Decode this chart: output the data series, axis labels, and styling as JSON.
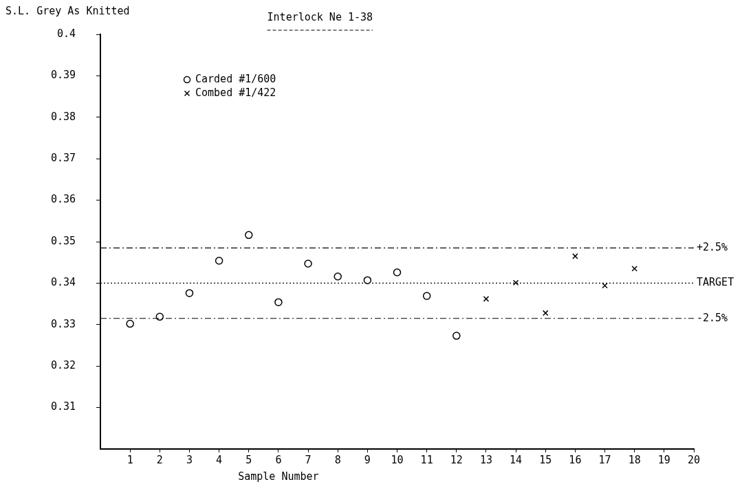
{
  "chart_data": {
    "type": "scatter",
    "title": "Interlock Ne 1-38",
    "xlabel": "Sample Number",
    "ylabel": "S.L. Grey As Knitted",
    "xlim": [
      0,
      20
    ],
    "xticks": [
      1,
      2,
      3,
      4,
      5,
      6,
      7,
      8,
      9,
      10,
      11,
      12,
      13,
      14,
      15,
      16,
      17,
      18,
      19,
      20
    ],
    "ylim": [
      0.3,
      0.4
    ],
    "yticks": [
      0.31,
      0.32,
      0.33,
      0.34,
      0.35,
      0.36,
      0.37,
      0.38,
      0.39,
      0.4
    ],
    "grid": false,
    "legend": "top left",
    "series": [
      {
        "name": "Carded #1/600",
        "color": "#000000",
        "marker": "circle",
        "x": [
          1,
          2,
          3,
          4,
          5,
          6,
          7,
          8,
          9,
          10,
          11,
          12
        ],
        "values": [
          0.3302,
          0.3319,
          0.3376,
          0.3454,
          0.3516,
          0.3354,
          0.3447,
          0.3416,
          0.3407,
          0.3426,
          0.3369,
          0.3273
        ]
      },
      {
        "name": "Combed #1/422",
        "color": "#000000",
        "marker": "cross",
        "x": [
          13,
          14,
          15,
          16,
          17,
          18
        ],
        "values": [
          0.3362,
          0.3401,
          0.3328,
          0.3465,
          0.3394,
          0.3435
        ]
      }
    ],
    "ref_lines": [
      {
        "axis": "y",
        "value": 0.3485,
        "line_style": "dashed",
        "color": "#000000"
      },
      {
        "axis": "y",
        "value": 0.34,
        "label": "TARGET",
        "line_style": "dotted",
        "color": "#000000"
      },
      {
        "axis": "y",
        "value": 0.3315,
        "line_style": "dashed",
        "color": "#000000"
      }
    ],
    "annotations": [
      {
        "text": "+2.5%",
        "x": 20,
        "y": 0.3485
      },
      {
        "text": "-2.5%",
        "x": 20,
        "y": 0.3315
      }
    ]
  }
}
